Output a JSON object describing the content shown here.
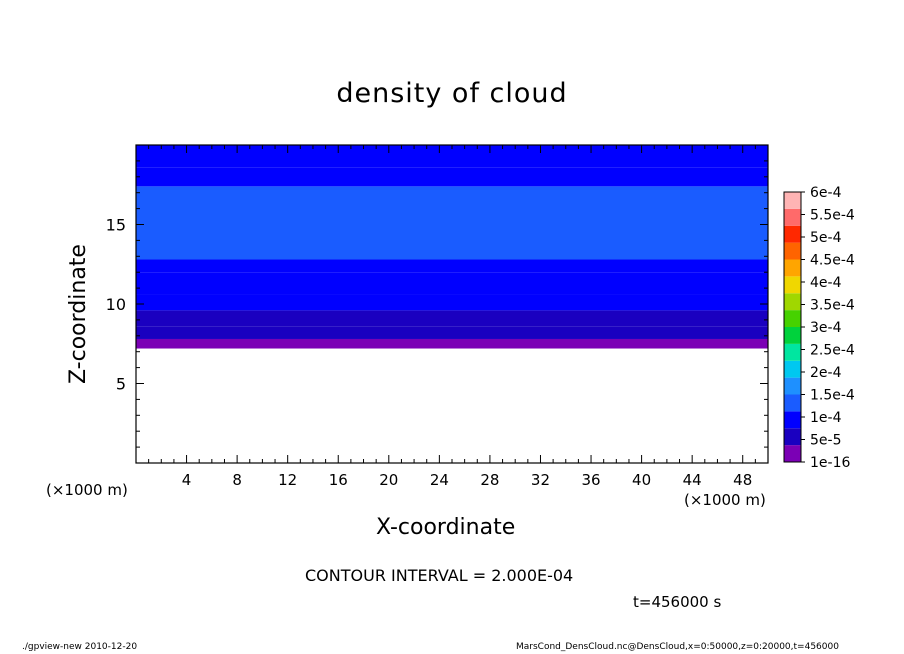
{
  "chart_data": {
    "type": "heatmap",
    "title": "density of cloud",
    "xlabel": "X-coordinate",
    "ylabel": "Z-coordinate",
    "xunit_left": "(×1000 m)",
    "xunit_right": "(×1000 m)",
    "xlim": [
      0,
      50
    ],
    "ylim": [
      0,
      20
    ],
    "xticks": [
      4,
      8,
      12,
      16,
      20,
      24,
      28,
      32,
      36,
      40,
      44,
      48
    ],
    "yticks": [
      5,
      10,
      15
    ],
    "colorbar": {
      "labels": [
        "1e-16",
        "5e-5",
        "1e-4",
        "1.5e-4",
        "2e-4",
        "2.5e-4",
        "3e-4",
        "3.5e-4",
        "4e-4",
        "4.5e-4",
        "5e-4",
        "5.5e-4",
        "6e-4"
      ],
      "colors": [
        "#7b00b5",
        "#1a00c0",
        "#0000ff",
        "#1a5cff",
        "#1e90ff",
        "#00c8f0",
        "#00e6a0",
        "#00d23c",
        "#46d200",
        "#a0d700",
        "#f0d700",
        "#ffa500",
        "#ff6400",
        "#ff2800",
        "#ff6a6a",
        "#ffb4b4"
      ]
    },
    "field": {
      "cloud_base_z": 7.2,
      "cloud_top_z": 20,
      "bands": [
        {
          "z0": 7.2,
          "z1": 7.8,
          "level": "1e-16"
        },
        {
          "z0": 7.8,
          "z1": 8.6,
          "level": "5e-5"
        },
        {
          "z0": 8.6,
          "z1": 9.6,
          "level": "5e-5"
        },
        {
          "z0": 9.6,
          "z1": 10.6,
          "level": "1e-4"
        },
        {
          "z0": 10.6,
          "z1": 12.0,
          "level": "1e-4"
        },
        {
          "z0": 12.0,
          "z1": 12.8,
          "level": "1e-4"
        },
        {
          "z0": 12.8,
          "z1": 17.4,
          "level": "1.5e-4"
        },
        {
          "z0": 17.4,
          "z1": 18.6,
          "level": "1e-4"
        },
        {
          "z0": 18.6,
          "z1": 20.0,
          "level": "1e-4"
        }
      ]
    },
    "contour_interval": "CONTOUR INTERVAL = 2.000E-04",
    "time_label": "t=456000 s"
  },
  "footer": {
    "left": "./gpview-new  2010-12-20",
    "right": "MarsCond_DensCloud.nc@DensCloud,x=0:50000,z=0:20000,t=456000"
  }
}
